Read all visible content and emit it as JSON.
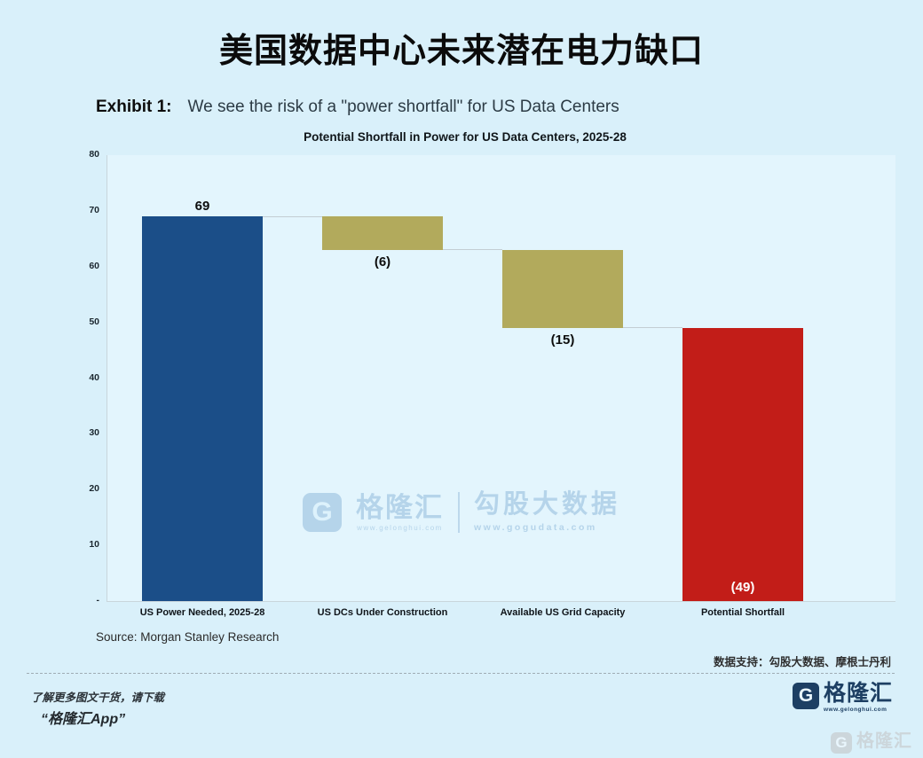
{
  "header": {
    "title": "美国数据中心未来潜在电力缺口",
    "exhibit_label": "Exhibit 1:",
    "exhibit_text": "We see the risk of a \"power shortfall\" for US Data Centers"
  },
  "chart_data": {
    "type": "bar",
    "subtype": "waterfall",
    "title": "Potential Shortfall in Power for US Data Centers, 2025-28",
    "categories": [
      "US Power Needed, 2025-28",
      "US DCs Under Construction",
      "Available US Grid Capacity",
      "Potential Shortfall"
    ],
    "values": [
      69,
      -6,
      -15,
      -49
    ],
    "bars": [
      {
        "label": "69",
        "from": 0,
        "to": 69,
        "color": "#1b4e88",
        "label_pos": "above",
        "label_color": "#0d0d0d"
      },
      {
        "label": "(6)",
        "from": 63,
        "to": 69,
        "color": "#b2aa5c",
        "label_pos": "below",
        "label_color": "#0d0d0d"
      },
      {
        "label": "(15)",
        "from": 49,
        "to": 63,
        "color": "#b2aa5c",
        "label_pos": "below",
        "label_color": "#0d0d0d"
      },
      {
        "label": "(49)",
        "from": 0,
        "to": 49,
        "color": "#c21d18",
        "label_pos": "inside",
        "label_color": "#ffffff"
      }
    ],
    "connectors": [
      {
        "level": 69
      },
      {
        "level": 63
      },
      {
        "level": 49
      }
    ],
    "ylim": [
      0,
      80
    ],
    "yticks": [
      80,
      70,
      60,
      50,
      40,
      30,
      20,
      10
    ],
    "zero_label": "-",
    "grid": false,
    "legend": "none",
    "colors": {
      "increase": "#1b4e88",
      "decrease": "#b2aa5c",
      "total": "#c21d18",
      "connector": "#c3cdd3",
      "plot_background": "#e3f5fd",
      "page_background": "#d9f0fa"
    }
  },
  "watermark": {
    "brand": "格隆汇",
    "brand_url": "www.gelonghui.com",
    "product": "勾股大数据",
    "product_url": "www.gogudata.com",
    "g_glyph": "G"
  },
  "notes": {
    "source": "Source: Morgan Stanley Research",
    "data_support": "数据支持：勾股大数据、摩根士丹利"
  },
  "footer": {
    "promo_line1": "了解更多图文干货，请下载",
    "promo_line2": "“格隆汇App”"
  },
  "brand": {
    "name": "格隆汇",
    "url": "www.gelonghui.com",
    "g_glyph": "G"
  }
}
